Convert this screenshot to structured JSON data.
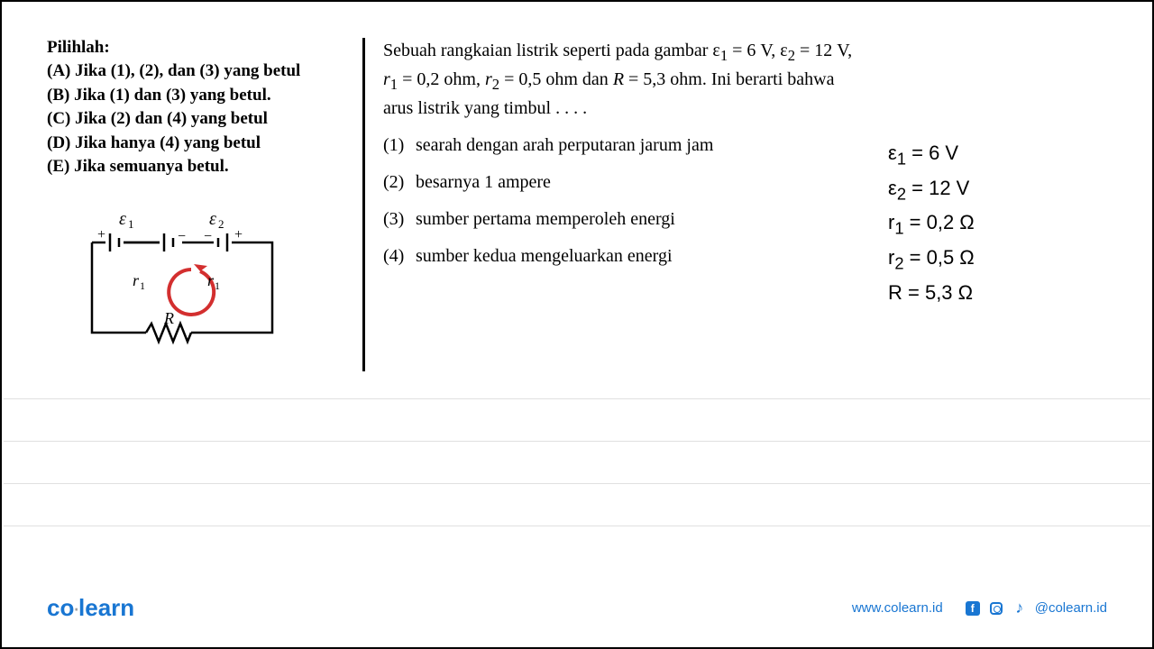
{
  "left": {
    "title": "Pilihlah:",
    "options": [
      {
        "label": "(A)",
        "text": "Jika (1), (2), dan (3) yang betul"
      },
      {
        "label": "(B)",
        "text": "Jika (1) dan (3) yang betul."
      },
      {
        "label": "(C)",
        "text": "Jika (2) dan (4) yang betul"
      },
      {
        "label": "(D)",
        "text": "Jika hanya (4) yang betul"
      },
      {
        "label": "(E)",
        "text": "Jika semuanya betul."
      }
    ]
  },
  "circuit": {
    "labels": {
      "e1": "ε₁",
      "e2": "ε₂",
      "r1_left": "r₁",
      "r1_right": "r₁",
      "R": "R",
      "plus": "+",
      "minus": "−"
    },
    "colors": {
      "wire": "#000000",
      "arrow": "#d32f2f"
    }
  },
  "mid": {
    "intro_html": "Sebuah rangkaian listrik seperti pada gambar ε<sub>1</sub> = 6 V, ε<sub>2</sub> = 12 V, <i>r</i><sub>1</sub> = 0,2 ohm, <i>r</i><sub>2</sub> = 0,5 ohm dan <i>R</i> = 5,3 ohm. Ini berarti bahwa arus listrik yang timbul . . . .",
    "statements": [
      {
        "num": "(1)",
        "text": "searah dengan arah perputaran jarum jam"
      },
      {
        "num": "(2)",
        "text": "besarnya 1 ampere"
      },
      {
        "num": "(3)",
        "text": "sumber pertama memperoleh energi"
      },
      {
        "num": "(4)",
        "text": "sumber kedua mengeluarkan energi"
      }
    ]
  },
  "right": {
    "equations": [
      "ε<sub>1</sub> = 6 V",
      "ε<sub>2</sub> = 12 V",
      "r<sub>1</sub> = 0,2 Ω",
      "r<sub>2</sub> = 0,5 Ω",
      "R = 5,3 Ω"
    ]
  },
  "footer": {
    "logo_co": "co",
    "logo_learn": "learn",
    "url": "www.colearn.id",
    "handle": "@colearn.id"
  },
  "colors": {
    "brand": "#1976d2",
    "line": "#e0e0e0",
    "text": "#000000"
  }
}
